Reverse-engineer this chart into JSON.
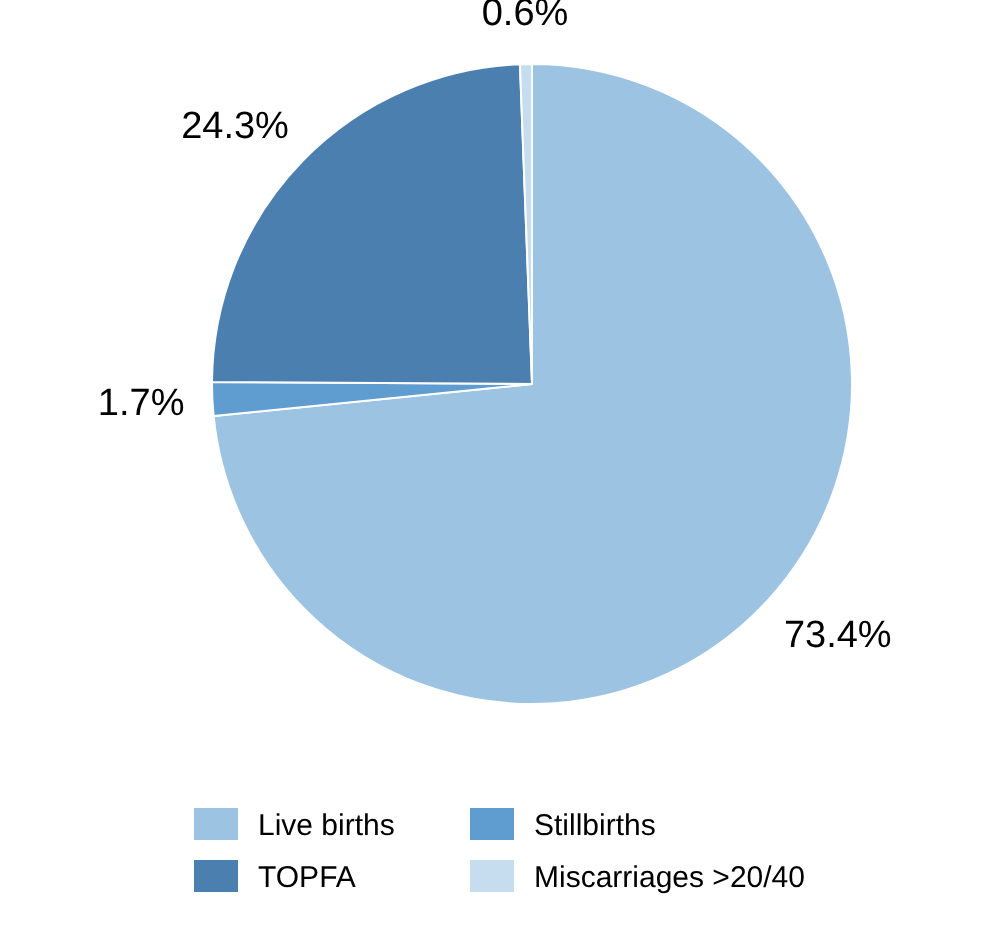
{
  "chart_data": {
    "type": "pie",
    "categories": [
      "Live births",
      "Stillbirths",
      "TOPFA",
      "Miscarriages >20/40"
    ],
    "values": [
      73.4,
      1.7,
      24.3,
      0.6
    ],
    "value_labels": [
      "73.4%",
      "1.7%",
      "24.3%",
      "0.6%"
    ],
    "colors": [
      "#9dc3e3",
      "#5f9ccf",
      "#4a7fb0",
      "#c6dcef"
    ],
    "legend": "bottom"
  }
}
